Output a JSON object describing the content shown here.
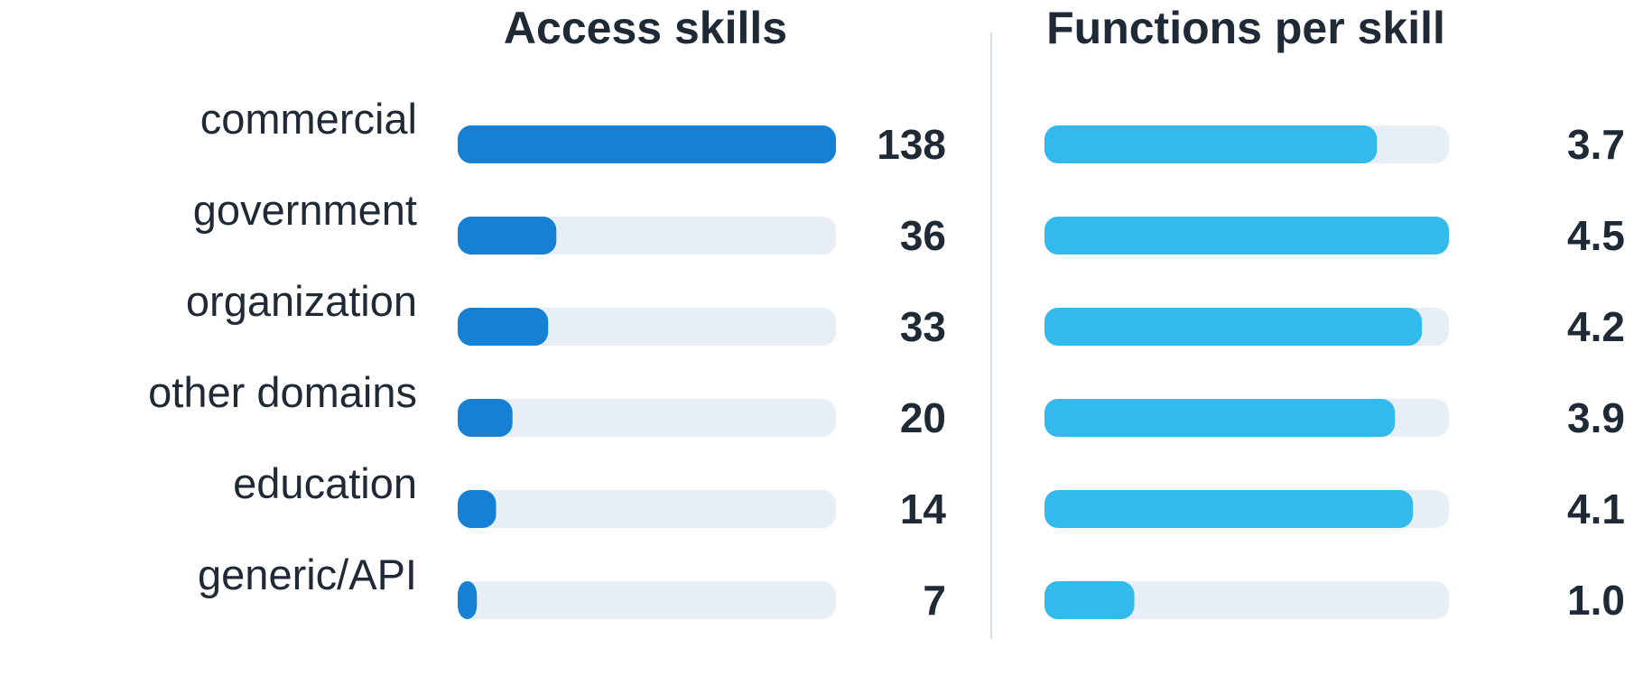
{
  "chart_data": {
    "type": "bar",
    "orientation": "horizontal",
    "categories": [
      "commercial",
      "government",
      "organization",
      "other domains",
      "education",
      "generic/API"
    ],
    "panels": [
      {
        "title": "Access skills",
        "values": [
          138,
          36,
          33,
          20,
          14,
          7
        ],
        "xlim": [
          0,
          138
        ],
        "bar_color": "#1580d4",
        "track_color": "#e8eef6"
      },
      {
        "title": "Functions per skill",
        "values": [
          3.7,
          4.5,
          4.2,
          3.9,
          4.1,
          1.0
        ],
        "value_labels": [
          "3.7",
          "4.5",
          "4.2",
          "3.9",
          "4.1",
          "1.0"
        ],
        "xlim": [
          0,
          4.5
        ],
        "bar_color": "#33baed",
        "track_color": "#e8eef6"
      }
    ],
    "divider_color": "#d3dfeb",
    "grid": false
  }
}
